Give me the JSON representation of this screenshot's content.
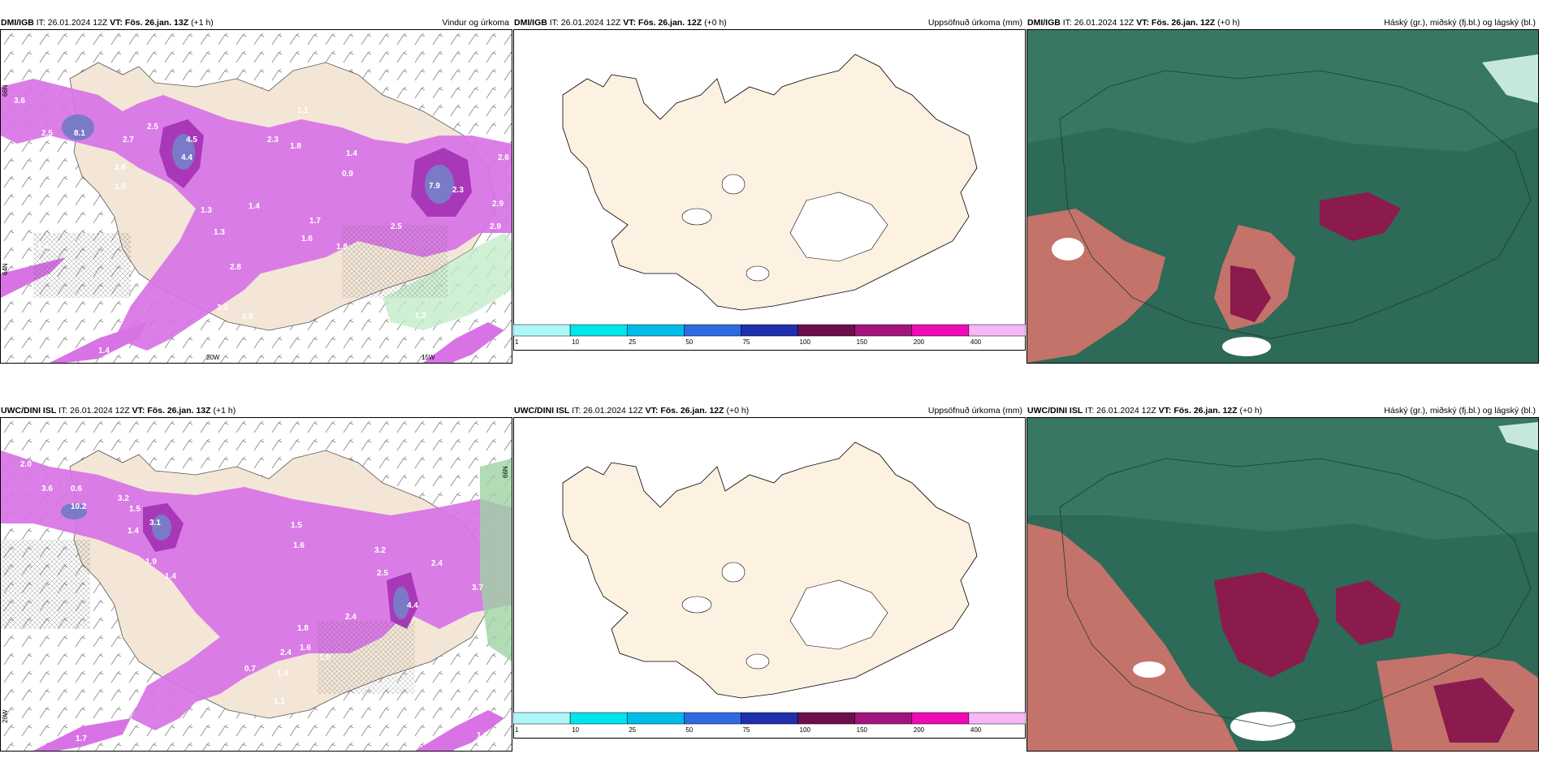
{
  "panels": {
    "p1": {
      "source": "DMI/IGB",
      "it": "IT: 26.01.2024 12Z",
      "vt": "VT: Fös. 26.jan. 13Z",
      "lead": "(+1 h)",
      "title": "Vindur og úrkoma"
    },
    "p2": {
      "source": "DMI/IGB",
      "it": "IT: 26.01.2024 12Z",
      "vt": "VT: Fös. 26.jan. 12Z",
      "lead": "(+0 h)",
      "title": "Uppsöfnuð úrkoma (mm)"
    },
    "p3": {
      "source": "DMI/IGB",
      "it": "IT: 26.01.2024 12Z",
      "vt": "VT: Fös. 26.jan. 12Z",
      "lead": "(+0 h)",
      "title": "Háský (gr.), miðský (fj.bl.) og lágský (bl.)"
    },
    "p4": {
      "source": "UWC/DINI ISL",
      "it": "IT: 26.01.2024 12Z",
      "vt": "VT: Fös. 26.jan. 13Z",
      "lead": "(+1 h)",
      "title": ""
    },
    "p5": {
      "source": "UWC/DINI ISL",
      "it": "IT: 26.01.2024 12Z",
      "vt": "VT: Fös. 26.jan. 12Z",
      "lead": "(+0 h)",
      "title": "Uppsöfnuð úrkoma (mm)"
    },
    "p6": {
      "source": "UWC/DINI ISL",
      "it": "IT: 26.01.2024 12Z",
      "vt": "VT: Fös. 26.jan. 12Z",
      "lead": "(+0 h)",
      "title": "Háský (gr.), miðský (fj.bl.) og lágský (bl.)"
    }
  },
  "coords": {
    "lat66": "66N",
    "lat64": "64N",
    "lon20": "20W",
    "lon15": "15W"
  },
  "colorbar": {
    "ticks": [
      "1",
      "10",
      "25",
      "50",
      "75",
      "100",
      "150",
      "200",
      "400"
    ],
    "colors": [
      "#aef6f8",
      "#00e5ec",
      "#00bde8",
      "#2f6ae0",
      "#1f2fae",
      "#6c0f4a",
      "#a4147e",
      "#ee0ab4",
      "#f6b8f6"
    ]
  },
  "precip_labels_top": [
    "3.6",
    "2.5",
    "8.1",
    "2.7",
    "2.5",
    "4.5",
    "4.4",
    "2.8",
    "1.5",
    "1.3",
    "1.4",
    "1.1",
    "1.8",
    "2.3",
    "1.4",
    "0.9",
    "1.3",
    "1.7",
    "1.6",
    "1.8",
    "2.5",
    "7.9",
    "2.3",
    "2.6",
    "2.9",
    "2.9",
    "1.4",
    "2.8",
    "3.2",
    "2.6",
    "1.2",
    "1.4",
    "1.1"
  ],
  "precip_labels_bottom": [
    "2.0",
    "3.6",
    "0.6",
    "10.2",
    "3.2",
    "1.5",
    "1.4",
    "3.1",
    "1.9",
    "1.4",
    "1.5",
    "1.6",
    "3.2",
    "2.5",
    "2.4",
    "4.4",
    "3.7",
    "2.4",
    "1.0",
    "2.4",
    "1.4",
    "0.7",
    "1.8",
    "1.6",
    "0.5",
    "1.1",
    "1.7",
    "1.2"
  ],
  "colors": {
    "land": "#f3e6d6",
    "precip": "#d873e6",
    "precip_dark": "#a938b8",
    "precip_core": "#7a7ac8",
    "cloud_bg": "#2d6a57",
    "cloud_low": "#c4736a",
    "cloud_high": "#8a1b4c"
  }
}
